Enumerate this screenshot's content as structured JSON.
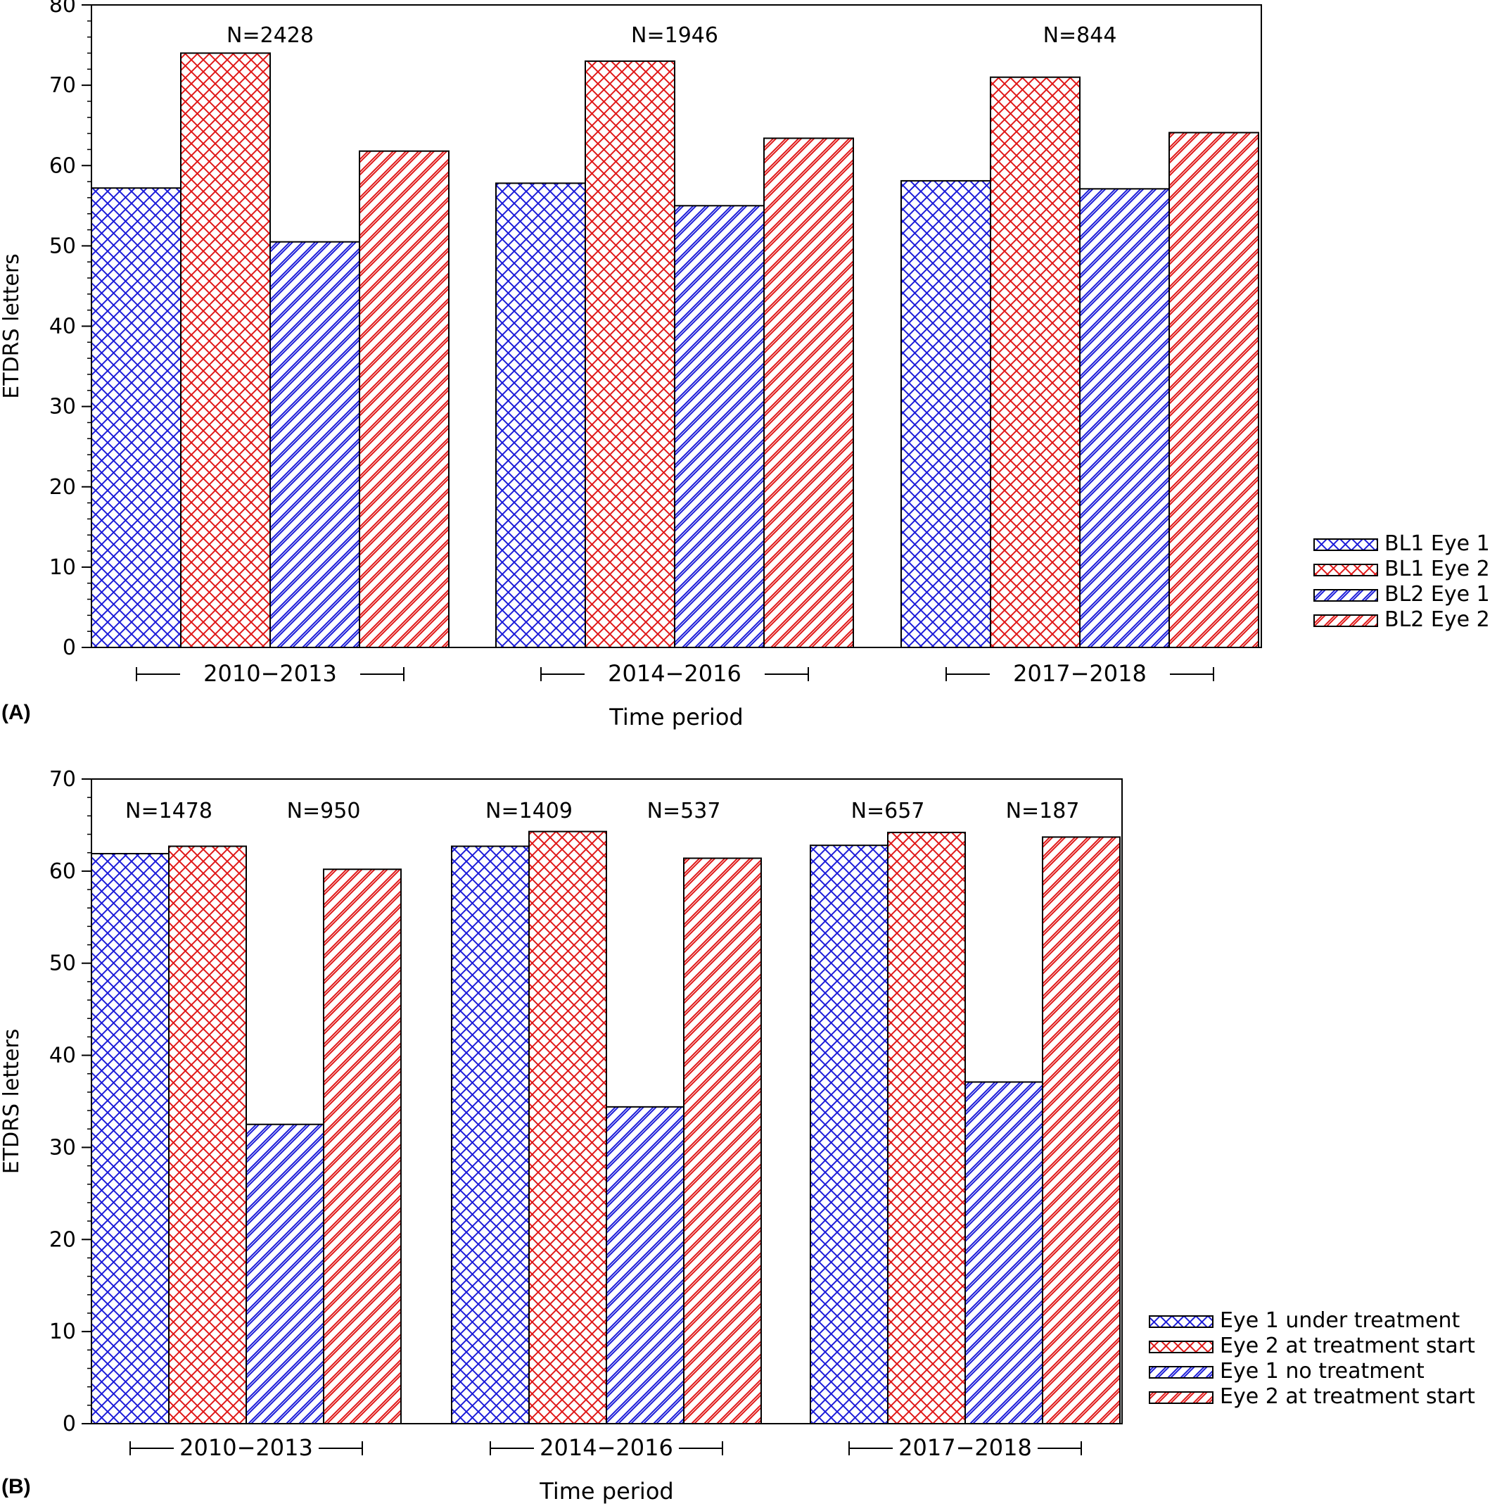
{
  "colors": {
    "eye1": "#1c1cd9",
    "eye2": "#e01818",
    "axis": "#000000"
  },
  "chart_data": [
    {
      "panel": "(A)",
      "type": "bar",
      "xlabel": "Time period",
      "ylabel": "ETDRS letters",
      "ylim": [
        0,
        80
      ],
      "yticks": [
        "0",
        "10",
        "20",
        "30",
        "40",
        "50",
        "60",
        "70",
        "80"
      ],
      "categories": [
        "2010−2013",
        "2014−2016",
        "2017−2018"
      ],
      "group_annotations": [
        [
          {
            "text": "N=2428",
            "over": [
              0,
              3
            ]
          }
        ],
        [
          {
            "text": "N=1946",
            "over": [
              0,
              3
            ]
          }
        ],
        [
          {
            "text": "N=844",
            "over": [
              0,
              3
            ]
          }
        ]
      ],
      "series": [
        {
          "name": "BL1 Eye 1",
          "pattern": "crosshatch",
          "color": "eye1",
          "values": [
            57.2,
            57.8,
            58.1
          ]
        },
        {
          "name": "BL1 Eye 2",
          "pattern": "crosshatch",
          "color": "eye2",
          "values": [
            74.0,
            73.0,
            71.0
          ]
        },
        {
          "name": "BL2 Eye 1",
          "pattern": "diagonal",
          "color": "eye1",
          "values": [
            50.5,
            55.0,
            57.1
          ]
        },
        {
          "name": "BL2 Eye 2",
          "pattern": "diagonal",
          "color": "eye2",
          "values": [
            61.8,
            63.4,
            64.1
          ]
        }
      ],
      "legend_position": "right-bottom",
      "grid": false
    },
    {
      "panel": "(B)",
      "type": "bar",
      "xlabel": "Time period",
      "ylabel": "ETDRS letters",
      "ylim": [
        0,
        70
      ],
      "yticks": [
        "0",
        "10",
        "20",
        "30",
        "40",
        "50",
        "60",
        "70"
      ],
      "categories": [
        "2010−2013",
        "2014−2016",
        "2017−2018"
      ],
      "group_annotations": [
        [
          {
            "text": "N=1478",
            "over": [
              0,
              1
            ]
          },
          {
            "text": "N=950",
            "over": [
              2,
              3
            ]
          }
        ],
        [
          {
            "text": "N=1409",
            "over": [
              0,
              1
            ]
          },
          {
            "text": "N=537",
            "over": [
              2,
              3
            ]
          }
        ],
        [
          {
            "text": "N=657",
            "over": [
              0,
              1
            ]
          },
          {
            "text": "N=187",
            "over": [
              2,
              3
            ]
          }
        ]
      ],
      "series": [
        {
          "name": "Eye 1 under treatment",
          "pattern": "crosshatch",
          "color": "eye1",
          "values": [
            61.9,
            62.7,
            62.8
          ]
        },
        {
          "name": "Eye 2 at treatment start",
          "pattern": "crosshatch",
          "color": "eye2",
          "values": [
            62.7,
            64.3,
            64.2
          ]
        },
        {
          "name": "Eye 1 no treatment",
          "pattern": "diagonal",
          "color": "eye1",
          "values": [
            32.5,
            34.4,
            37.1
          ]
        },
        {
          "name": "Eye 2 at treatment start",
          "pattern": "diagonal",
          "color": "eye2",
          "values": [
            60.2,
            61.4,
            63.7
          ]
        }
      ],
      "legend_position": "right-bottom",
      "grid": false
    }
  ]
}
